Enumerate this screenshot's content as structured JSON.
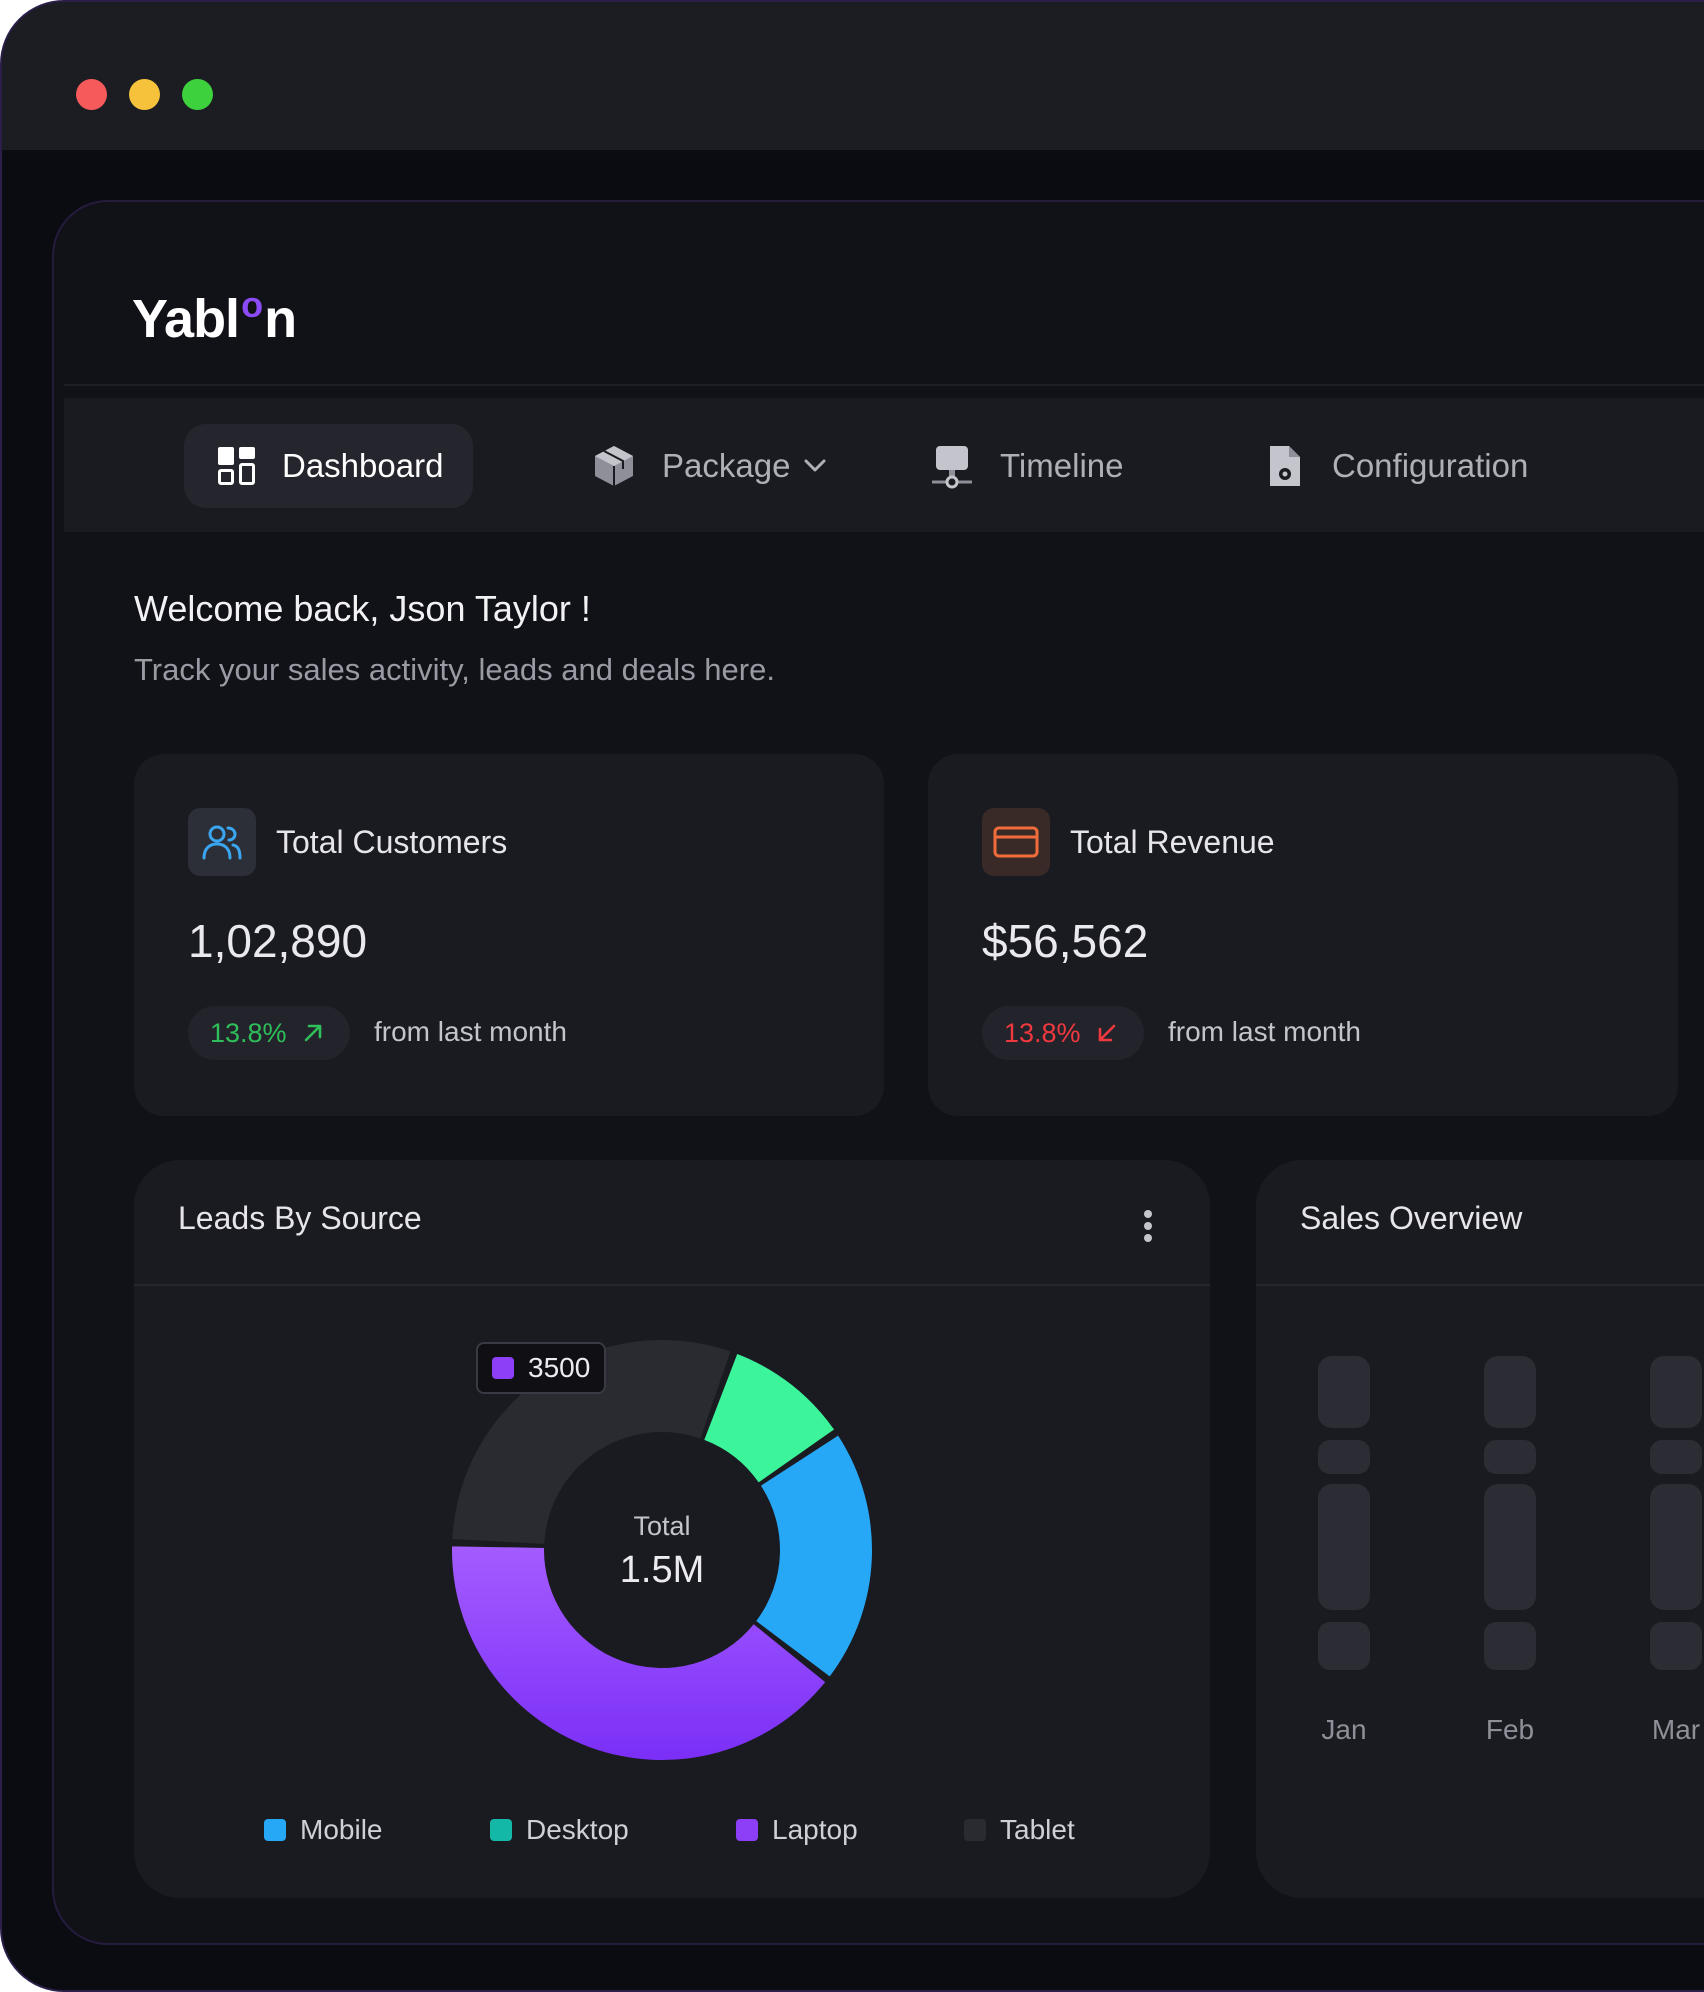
{
  "window": {
    "controls": [
      "close",
      "minimize",
      "maximize"
    ]
  },
  "brand": {
    "logo_part1": "Yabl",
    "logo_o": "o",
    "logo_part2": "n"
  },
  "nav": {
    "dashboard": "Dashboard",
    "package": "Package",
    "timeline": "Timeline",
    "configuration": "Configuration"
  },
  "welcome": {
    "title": "Welcome back, Json Taylor !",
    "subtitle": "Track your sales activity, leads and deals here."
  },
  "stats": {
    "customers": {
      "title": "Total Customers",
      "value": "1,02,890",
      "change": "13.8%",
      "trend": "up",
      "from": "from last month"
    },
    "revenue": {
      "title": "Total Revenue",
      "value": "$56,562",
      "change": "13.8%",
      "trend": "down",
      "from": "from last month"
    }
  },
  "leads": {
    "title": "Leads By Source",
    "center_label": "Total",
    "center_value": "1.5M",
    "tooltip_value": "3500",
    "legend": [
      "Mobile",
      "Desktop",
      "Laptop",
      "Tablet"
    ]
  },
  "sales": {
    "title": "Sales Overview",
    "months": [
      "Jan",
      "Feb",
      "Mar"
    ]
  },
  "colors": {
    "mobile": "#27a8f7",
    "desktop": "#14b8a6",
    "desktop_slice": "#3cf59a",
    "laptop": "#8c3ff7",
    "tablet": "#2a2a31",
    "up": "#2fbf5a",
    "down": "#f0383f",
    "accent": "#8b4cf7"
  },
  "chart_data": {
    "type": "pie",
    "title": "Leads By Source",
    "categories": [
      "Desktop",
      "Mobile",
      "Laptop",
      "Tablet"
    ],
    "values": [
      10,
      20,
      40,
      30
    ],
    "unit": "percent of ring (estimated)",
    "center_text": "Total 1.5M",
    "highlight": {
      "category": "Laptop",
      "label": "3500"
    }
  }
}
